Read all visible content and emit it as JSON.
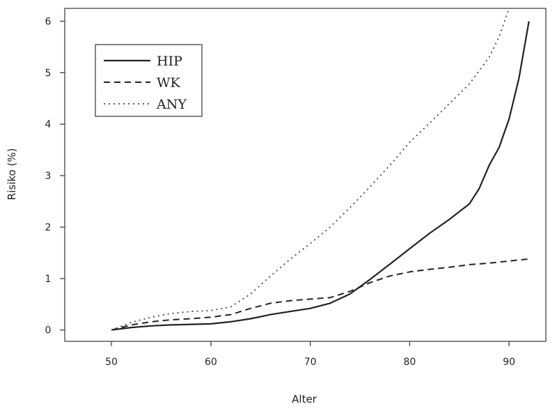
{
  "chart_data": {
    "type": "line",
    "xlabel": "Alter",
    "ylabel": "Risiko (%)",
    "xlim": [
      45.3,
      93.7
    ],
    "ylim": [
      -0.22,
      6.25
    ],
    "xticks": [
      50,
      60,
      70,
      80,
      90
    ],
    "yticks": [
      0,
      1,
      2,
      3,
      4,
      5,
      6
    ],
    "grid": false,
    "legend_position": "top-left",
    "series": [
      {
        "name": "HIP",
        "style": "solid",
        "color": "#222222",
        "points": [
          [
            50,
            0.0
          ],
          [
            52,
            0.05
          ],
          [
            54,
            0.08
          ],
          [
            56,
            0.1
          ],
          [
            58,
            0.11
          ],
          [
            60,
            0.12
          ],
          [
            62,
            0.16
          ],
          [
            64,
            0.22
          ],
          [
            66,
            0.3
          ],
          [
            68,
            0.36
          ],
          [
            70,
            0.42
          ],
          [
            72,
            0.52
          ],
          [
            74,
            0.7
          ],
          [
            76,
            0.98
          ],
          [
            78,
            1.28
          ],
          [
            80,
            1.58
          ],
          [
            82,
            1.88
          ],
          [
            84,
            2.15
          ],
          [
            85,
            2.3
          ],
          [
            86,
            2.45
          ],
          [
            87,
            2.75
          ],
          [
            88,
            3.2
          ],
          [
            89,
            3.55
          ],
          [
            90,
            4.1
          ],
          [
            91,
            4.9
          ],
          [
            92,
            6.0
          ]
        ]
      },
      {
        "name": "WK",
        "style": "dashed",
        "color": "#222222",
        "points": [
          [
            50,
            0.0
          ],
          [
            52,
            0.1
          ],
          [
            54,
            0.16
          ],
          [
            56,
            0.2
          ],
          [
            58,
            0.22
          ],
          [
            60,
            0.25
          ],
          [
            62,
            0.3
          ],
          [
            64,
            0.42
          ],
          [
            66,
            0.52
          ],
          [
            68,
            0.57
          ],
          [
            70,
            0.6
          ],
          [
            72,
            0.63
          ],
          [
            74,
            0.75
          ],
          [
            76,
            0.92
          ],
          [
            78,
            1.05
          ],
          [
            80,
            1.13
          ],
          [
            82,
            1.18
          ],
          [
            84,
            1.22
          ],
          [
            86,
            1.27
          ],
          [
            88,
            1.3
          ],
          [
            90,
            1.34
          ],
          [
            92,
            1.38
          ]
        ]
      },
      {
        "name": "ANY",
        "style": "dotted",
        "color": "#444444",
        "points": [
          [
            50,
            0.0
          ],
          [
            52,
            0.15
          ],
          [
            54,
            0.25
          ],
          [
            56,
            0.32
          ],
          [
            58,
            0.36
          ],
          [
            60,
            0.38
          ],
          [
            62,
            0.45
          ],
          [
            64,
            0.7
          ],
          [
            66,
            1.05
          ],
          [
            68,
            1.38
          ],
          [
            70,
            1.68
          ],
          [
            72,
            2.0
          ],
          [
            74,
            2.38
          ],
          [
            76,
            2.78
          ],
          [
            78,
            3.2
          ],
          [
            80,
            3.65
          ],
          [
            82,
            4.02
          ],
          [
            84,
            4.4
          ],
          [
            86,
            4.78
          ],
          [
            88,
            5.3
          ],
          [
            89,
            5.7
          ],
          [
            90,
            6.25
          ]
        ]
      }
    ]
  }
}
